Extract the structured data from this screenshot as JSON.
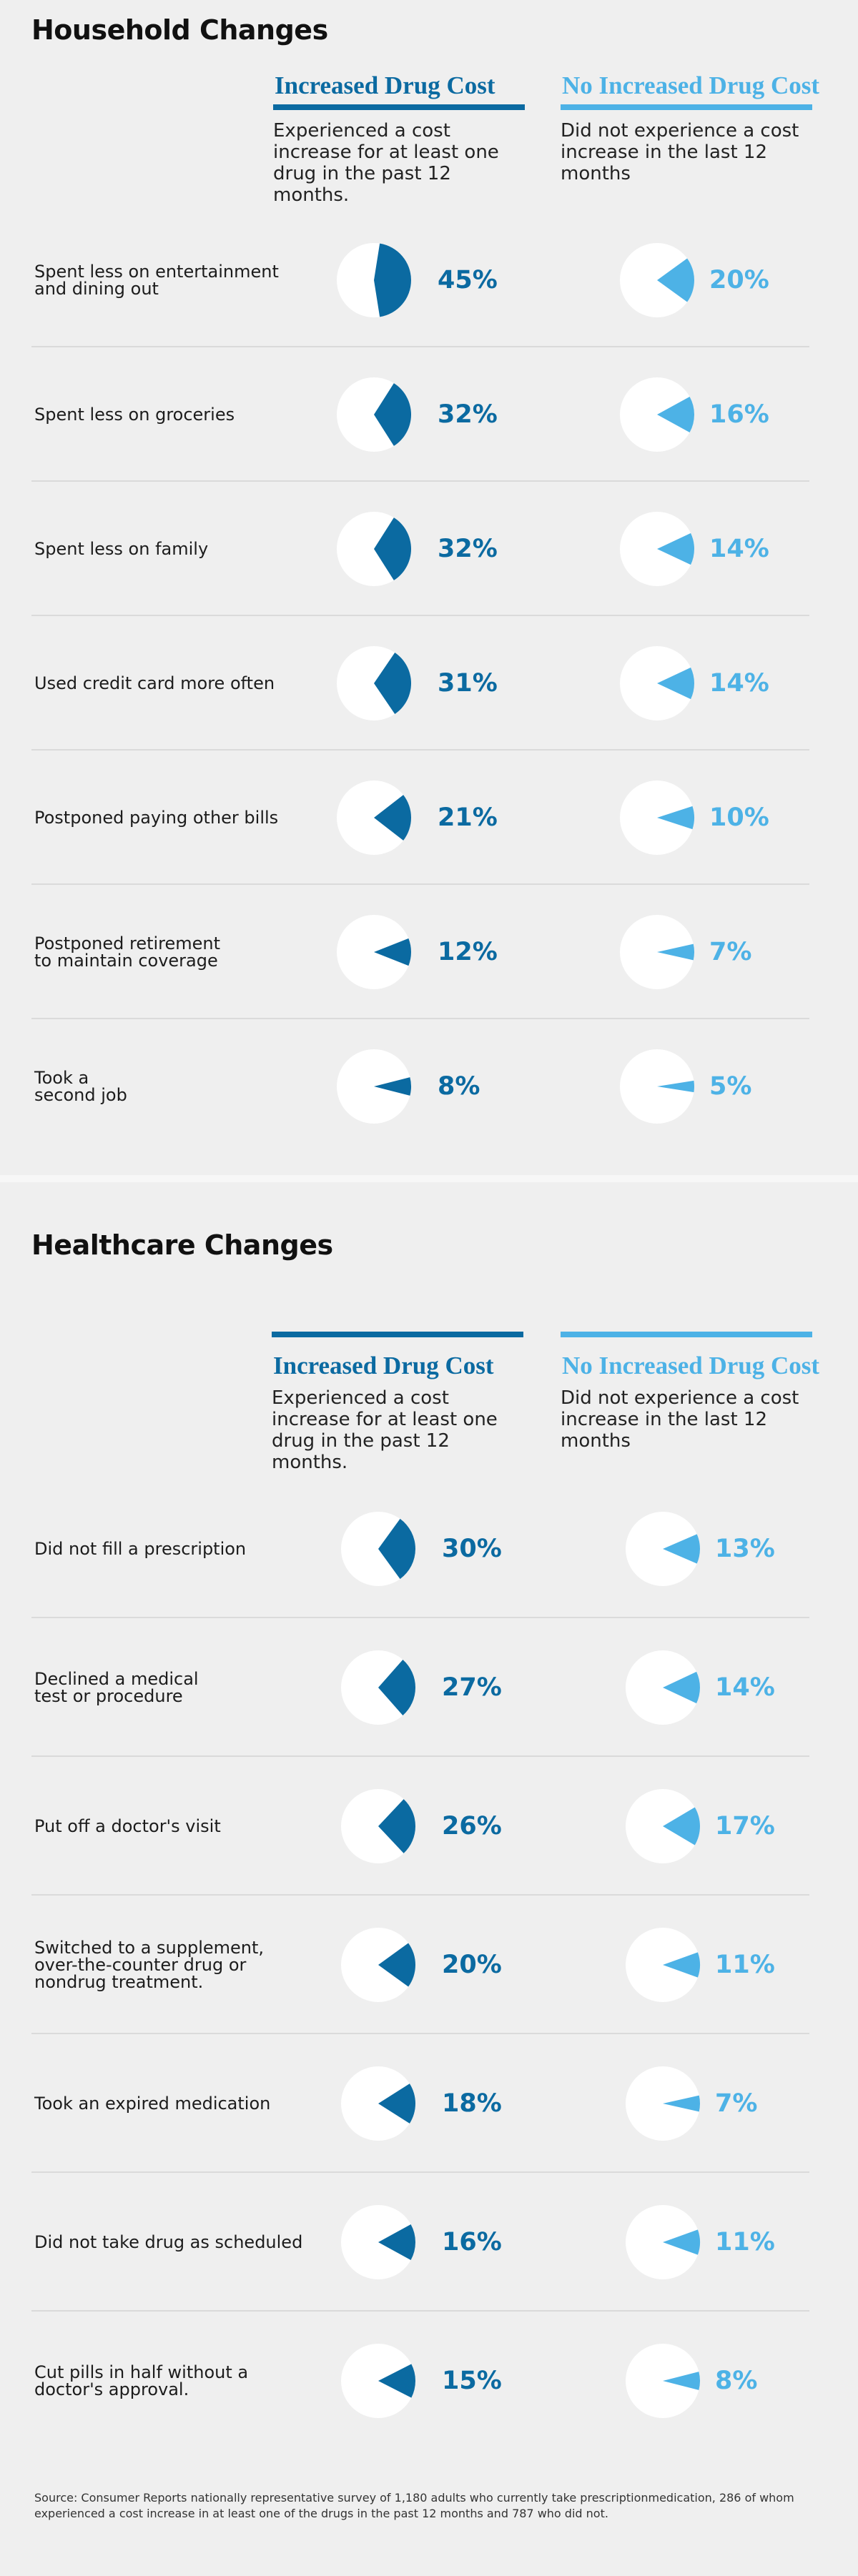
{
  "colors": {
    "increased": "#0b6aa1",
    "no_increased": "#4db2e6",
    "pie_bg": "#ffffff"
  },
  "columns": {
    "increased": {
      "title": "Increased Drug Cost",
      "desc": "Experienced a cost increase for at least one drug in the past 12 months."
    },
    "no_increased": {
      "title": "No Increased Drug Cost",
      "desc": "Did not experience a cost increase in the last 12 months"
    }
  },
  "chart_data": [
    {
      "type": "pie",
      "title": "Household Changes",
      "series_names": [
        "Increased Drug Cost",
        "No Increased Drug Cost"
      ],
      "rows": [
        {
          "label": "Spent less on entertainment\nand dining out",
          "increased": 45,
          "no_increased": 20
        },
        {
          "label": "Spent less on groceries",
          "increased": 32,
          "no_increased": 16
        },
        {
          "label": "Spent less on family",
          "increased": 32,
          "no_increased": 14
        },
        {
          "label": "Used credit card more often",
          "increased": 31,
          "no_increased": 14
        },
        {
          "label": "Postponed paying other bills",
          "increased": 21,
          "no_increased": 10
        },
        {
          "label": "Postponed retirement\nto maintain coverage",
          "increased": 12,
          "no_increased": 7
        },
        {
          "label": "Took a\nsecond job",
          "increased": 8,
          "no_increased": 5
        }
      ]
    },
    {
      "type": "pie",
      "title": "Healthcare Changes",
      "series_names": [
        "Increased Drug Cost",
        "No Increased Drug Cost"
      ],
      "rows": [
        {
          "label": "Did not fill a prescription",
          "increased": 30,
          "no_increased": 13
        },
        {
          "label": "Declined a medical\ntest or procedure",
          "increased": 27,
          "no_increased": 14
        },
        {
          "label": "Put off a doctor's visit",
          "increased": 26,
          "no_increased": 17
        },
        {
          "label": "Switched to a supplement,\nover-the-counter drug or\nnondrug treatment.",
          "increased": 20,
          "no_increased": 11
        },
        {
          "label": "Took an expired medication",
          "increased": 18,
          "no_increased": 7
        },
        {
          "label": "Did not take drug as scheduled",
          "increased": 16,
          "no_increased": 11
        },
        {
          "label": "Cut pills in half without a\ndoctor's approval.",
          "increased": 15,
          "no_increased": 8
        }
      ]
    }
  ],
  "source": "Source:  Consumer Reports nationally representative survey of 1,180 adults who currently take prescriptionmedication, 286 of whom experienced a cost increase in at least one of the drugs in the past 12 months and 787 who did not."
}
